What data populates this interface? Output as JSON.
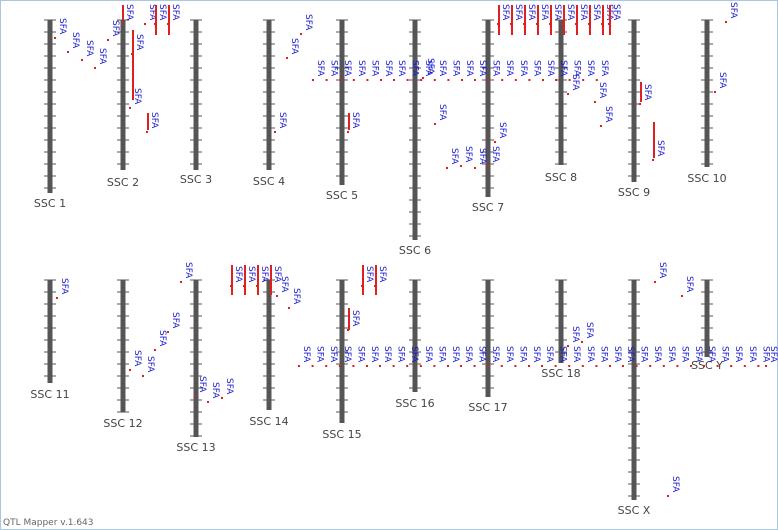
{
  "chromosomes": [
    {
      "name": "SSC 1",
      "qtls": [
        "SFA",
        "SFA",
        "SFA",
        "SFA",
        "SFA"
      ]
    },
    {
      "name": "SSC 2",
      "qtls": [
        "SFA",
        "SFA",
        "SFA",
        "SFA",
        "SFA"
      ]
    },
    {
      "name": "SSC 3",
      "qtls": [
        "SFA",
        "SFA"
      ]
    },
    {
      "name": "SSC 4",
      "qtls": [
        "SFA",
        "SFA",
        "SFA"
      ]
    },
    {
      "name": "SSC 5",
      "qtls": [
        "SFA",
        "SFA",
        "SFA",
        "SFA",
        "SFA",
        "SFA",
        "SFA"
      ]
    },
    {
      "name": "SSC 6",
      "qtls": [
        "SFA",
        "SFA",
        "SFA",
        "SFA",
        "SFA",
        "SFA",
        "SFA",
        "SFA",
        "SFA",
        "SFA"
      ]
    },
    {
      "name": "SSC 7",
      "qtls": [
        "SFA",
        "SFA",
        "SFA",
        "SFA",
        "SFA",
        "SFA",
        "SFA",
        "SFA",
        "SFA",
        "SFA",
        "SFA",
        "SFA",
        "SFA",
        "SFA"
      ]
    },
    {
      "name": "SSC 8",
      "qtls": [
        "SFA",
        "SFA",
        "SFA",
        "SFA",
        "SFA",
        "SFA",
        "SFA",
        "SFA",
        "SFA",
        "SFA",
        "SFA",
        "SFA"
      ]
    },
    {
      "name": "SSC 9",
      "qtls": [
        "SFA",
        "SFA"
      ]
    },
    {
      "name": "SSC 10",
      "qtls": [
        "SFA",
        "SFA"
      ]
    },
    {
      "name": "SSC 11",
      "qtls": [
        "SFA"
      ]
    },
    {
      "name": "SSC 12",
      "qtls": [
        "SFA",
        "SFA",
        "SFA",
        "SFA",
        "SFA"
      ]
    },
    {
      "name": "SSC 13",
      "qtls": [
        "SFA",
        "SFA",
        "SFA"
      ]
    },
    {
      "name": "SSC 14",
      "qtls": [
        "SFA",
        "SFA",
        "SFA",
        "SFA",
        "SFA",
        "SFA"
      ]
    },
    {
      "name": "SSC 15",
      "qtls": [
        "SFA",
        "SFA",
        "SFA",
        "SFA",
        "SFA",
        "SFA",
        "SFA",
        "SFA",
        "SFA"
      ]
    },
    {
      "name": "SSC 16",
      "qtls": [
        "SFA",
        "SFA",
        "SFA",
        "SFA",
        "SFA",
        "SFA"
      ]
    },
    {
      "name": "SSC 17",
      "qtls": [
        "SFA",
        "SFA",
        "SFA",
        "SFA",
        "SFA",
        "SFA"
      ]
    },
    {
      "name": "SSC 18",
      "qtls": [
        "SFA",
        "SFA",
        "SFA",
        "SFA",
        "SFA",
        "SFA",
        "SFA",
        "SFA"
      ]
    },
    {
      "name": "SSC X",
      "qtls": [
        "SFA",
        "SFA",
        "SFA",
        "SFA",
        "SFA",
        "SFA",
        "SFA",
        "SFA",
        "SFA"
      ]
    },
    {
      "name": "SSC Y",
      "qtls": [
        "SFA",
        "SFA",
        "SFA",
        "SFA",
        "SFA",
        "SFA"
      ]
    }
  ],
  "footer": "QTL Mapper v.1.643"
}
